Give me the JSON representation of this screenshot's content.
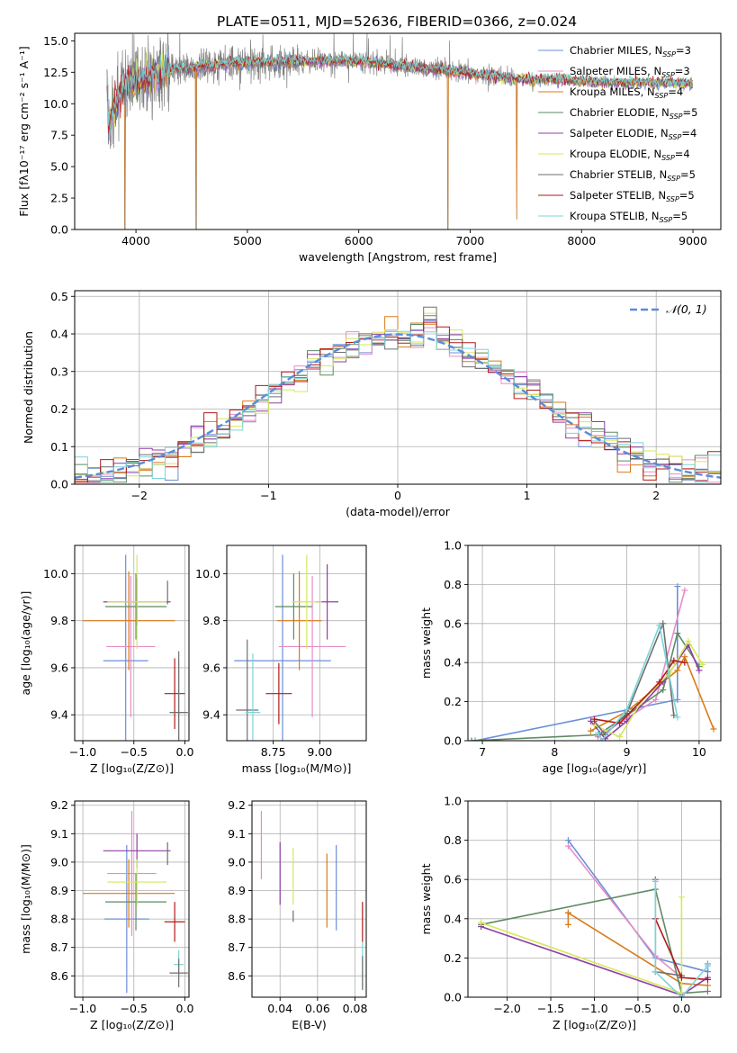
{
  "figure": {
    "title": "PLATE=0511, MJD=52636, FIBERID=0366, z=0.024"
  },
  "legend_entries": [
    {
      "name": "Chabrier MILES, N",
      "sub": "SSP",
      "tail": "=3",
      "color": "#6a8fd8"
    },
    {
      "name": "Salpeter MILES, N",
      "sub": "SSP",
      "tail": "=3",
      "color": "#e68cc7"
    },
    {
      "name": "Kroupa MILES, N",
      "sub": "SSP",
      "tail": "=4",
      "color": "#d97b1a"
    },
    {
      "name": "Chabrier ELODIE, N",
      "sub": "SSP",
      "tail": "=5",
      "color": "#5e8b62"
    },
    {
      "name": "Salpeter ELODIE, N",
      "sub": "SSP",
      "tail": "=4",
      "color": "#8f3fa6"
    },
    {
      "name": "Kroupa ELODIE, N",
      "sub": "SSP",
      "tail": "=4",
      "color": "#d5e85a"
    },
    {
      "name": "Chabrier STELIB, N",
      "sub": "SSP",
      "tail": "=5",
      "color": "#6f6f6f"
    },
    {
      "name": "Salpeter STELIB, N",
      "sub": "SSP",
      "tail": "=5",
      "color": "#b21a1a"
    },
    {
      "name": "Kroupa STELIB, N",
      "sub": "SSP",
      "tail": "=5",
      "color": "#7dd3d8"
    }
  ],
  "chart_data": [
    {
      "id": "spectrum",
      "type": "line",
      "xlabel": "wavelength [Angstrom, rest frame]",
      "ylabel": "Flux [fλ10⁻¹⁷ erg cm⁻² s⁻¹ A⁻¹]",
      "xlim": [
        3450,
        9250
      ],
      "ylim": [
        0,
        15.6
      ],
      "xticks": [
        4000,
        5000,
        6000,
        7000,
        8000,
        9000
      ],
      "yticks": [
        0.0,
        2.5,
        5.0,
        7.5,
        10.0,
        12.5,
        15.0
      ],
      "ytick_labels": [
        "0.0",
        "2.5",
        "5.0",
        "7.5",
        "10.0",
        "12.5",
        "15.0"
      ],
      "continuum": [
        [
          3750,
          8.5
        ],
        [
          3850,
          10.5
        ],
        [
          3950,
          11.8
        ],
        [
          4100,
          12.0
        ],
        [
          4300,
          12.7
        ],
        [
          4600,
          13.0
        ],
        [
          5000,
          13.3
        ],
        [
          5500,
          13.4
        ],
        [
          6000,
          13.4
        ],
        [
          6500,
          12.9
        ],
        [
          7000,
          12.4
        ],
        [
          7400,
          12.0
        ],
        [
          7800,
          11.9
        ],
        [
          8200,
          11.7
        ],
        [
          8600,
          11.7
        ],
        [
          9000,
          11.6
        ],
        [
          9200,
          11.4
        ]
      ],
      "data_range": [
        3740,
        7420
      ],
      "model_range": [
        3740,
        9000
      ],
      "dips": [
        [
          3900,
          0.0
        ],
        [
          4540,
          0.0
        ],
        [
          6800,
          0.0
        ],
        [
          7420,
          0.8
        ]
      ]
    },
    {
      "id": "residuals",
      "type": "histogram",
      "xlabel": "(data-model)/error",
      "ylabel": "Normed distribution",
      "xlim": [
        -2.5,
        2.5
      ],
      "ylim": [
        0,
        0.515
      ],
      "xticks": [
        -2,
        -1,
        0,
        1,
        2
      ],
      "xtick_labels": [
        "−2",
        "−1",
        "0",
        "1",
        "2"
      ],
      "yticks": [
        0.0,
        0.1,
        0.2,
        0.3,
        0.4,
        0.5
      ],
      "ytick_labels": [
        "0.0",
        "0.1",
        "0.2",
        "0.3",
        "0.4",
        "0.5"
      ],
      "bin_width": 0.1,
      "legend": "𝒩(0, 1)"
    },
    {
      "id": "age-vs-Z",
      "type": "errorbar",
      "xlabel": "Z [log₁₀(Z/Z⊙)]",
      "ylabel": "age  [log₁₀(age/yr)]",
      "xlim": [
        -1.08,
        0.04
      ],
      "ylim": [
        9.29,
        10.12
      ],
      "xticks": [
        -1.0,
        -0.5,
        0.0
      ],
      "xtick_labels": [
        "−1.0",
        "−0.5",
        "0.0"
      ],
      "yticks": [
        9.4,
        9.6,
        9.8,
        10.0
      ],
      "ytick_labels": [
        "9.4",
        "9.6",
        "9.8",
        "10.0"
      ],
      "points": [
        {
          "x": -0.58,
          "xerr": 0.22,
          "y": 9.63,
          "yerr": 0.45,
          "color": "#6a8fd8"
        },
        {
          "x": -0.53,
          "xerr": 0.24,
          "y": 9.69,
          "yerr": 0.3,
          "color": "#e68cc7"
        },
        {
          "x": -0.55,
          "xerr": 0.45,
          "y": 9.8,
          "yerr": 0.21,
          "color": "#d97b1a"
        },
        {
          "x": -0.48,
          "xerr": 0.3,
          "y": 9.86,
          "yerr": 0.14,
          "color": "#5e8b62"
        },
        {
          "x": -0.47,
          "xerr": 0.33,
          "y": 9.88,
          "yerr": 0.1,
          "color": "#8f3fa6"
        },
        {
          "x": -0.47,
          "xerr": 0.29,
          "y": 9.88,
          "yerr": 0.2,
          "color": "#d5e85a"
        },
        {
          "x": -0.17,
          "xerr": 0.0,
          "y": 9.92,
          "yerr": 0.05,
          "color": "#6f6f6f"
        },
        {
          "x": -0.1,
          "xerr": 0.1,
          "y": 9.49,
          "yerr": 0.15,
          "color": "#b21a1a"
        },
        {
          "x": -0.06,
          "xerr": 0.05,
          "y": 9.41,
          "yerr": 0.22,
          "color": "#7dd3d8"
        },
        {
          "x": -0.06,
          "xerr": 0.09,
          "y": 9.41,
          "yerr": 0.26,
          "color": "#6f6f6f"
        }
      ]
    },
    {
      "id": "age-vs-mass",
      "type": "errorbar",
      "xlabel": "mass [log₁₀(M/M⊙)]",
      "ylabel": "",
      "xlim": [
        8.5,
        9.25
      ],
      "ylim": [
        9.29,
        10.12
      ],
      "xticks": [
        8.75,
        9.0
      ],
      "xtick_labels": [
        "8.75",
        "9.00"
      ],
      "yticks": [
        9.4,
        9.6,
        9.8,
        10.0
      ],
      "ytick_labels": [
        "9.4",
        "9.6",
        "9.8",
        "10.0"
      ],
      "points": [
        {
          "x": 8.8,
          "xerr": 0.26,
          "y": 9.63,
          "yerr": 0.45,
          "color": "#6a8fd8"
        },
        {
          "x": 8.96,
          "xerr": 0.18,
          "y": 9.69,
          "yerr": 0.3,
          "color": "#e68cc7"
        },
        {
          "x": 8.89,
          "xerr": 0.12,
          "y": 9.8,
          "yerr": 0.21,
          "color": "#d97b1a"
        },
        {
          "x": 8.86,
          "xerr": 0.1,
          "y": 9.86,
          "yerr": 0.14,
          "color": "#5e8b62"
        },
        {
          "x": 9.04,
          "xerr": 0.06,
          "y": 9.88,
          "yerr": 0.16,
          "color": "#8f3fa6"
        },
        {
          "x": 8.93,
          "xerr": 0.08,
          "y": 9.88,
          "yerr": 0.2,
          "color": "#d5e85a"
        },
        {
          "x": 8.61,
          "xerr": 0.06,
          "y": 9.42,
          "yerr": 0.3,
          "color": "#6f6f6f"
        },
        {
          "x": 8.78,
          "xerr": 0.07,
          "y": 9.49,
          "yerr": 0.13,
          "color": "#b21a1a"
        },
        {
          "x": 8.64,
          "xerr": 0.04,
          "y": 9.41,
          "yerr": 0.25,
          "color": "#7dd3d8"
        }
      ]
    },
    {
      "id": "massweight-vs-age",
      "type": "line",
      "xlabel": "age  [log₁₀(age/yr)]",
      "ylabel": "mass weight",
      "xlim": [
        6.8,
        10.3
      ],
      "ylim": [
        0,
        1.0
      ],
      "xticks": [
        7,
        8,
        9,
        10
      ],
      "xtick_labels": [
        "7",
        "8",
        "9",
        "10"
      ],
      "yticks": [
        0.0,
        0.2,
        0.4,
        0.6,
        0.8,
        1.0
      ],
      "ytick_labels": [
        "0.0",
        "0.2",
        "0.4",
        "0.6",
        "0.8",
        "1.0"
      ],
      "series": [
        {
          "color": "#6a8fd8",
          "points": [
            [
              6.9,
              0.0
            ],
            [
              9.7,
              0.21
            ],
            [
              9.7,
              0.79
            ]
          ]
        },
        {
          "color": "#e68cc7",
          "points": [
            [
              8.6,
              0.02
            ],
            [
              9.4,
              0.21
            ],
            [
              9.8,
              0.77
            ]
          ]
        },
        {
          "color": "#d97b1a",
          "points": [
            [
              8.5,
              0.05
            ],
            [
              9.0,
              0.15
            ],
            [
              9.7,
              0.36
            ],
            [
              9.8,
              0.43
            ],
            [
              10.2,
              0.06
            ]
          ]
        },
        {
          "color": "#5e8b62",
          "points": [
            [
              6.85,
              0.0
            ],
            [
              8.6,
              0.03
            ],
            [
              9.0,
              0.13
            ],
            [
              9.5,
              0.26
            ],
            [
              9.7,
              0.55
            ],
            [
              10.0,
              0.38
            ]
          ]
        },
        {
          "color": "#8f3fa6",
          "points": [
            [
              8.5,
              0.1
            ],
            [
              8.7,
              0.01
            ],
            [
              9.0,
              0.1
            ],
            [
              9.5,
              0.3
            ],
            [
              9.85,
              0.49
            ],
            [
              10.0,
              0.36
            ]
          ]
        },
        {
          "color": "#d5e85a",
          "points": [
            [
              8.55,
              0.08
            ],
            [
              8.9,
              0.02
            ],
            [
              9.2,
              0.2
            ],
            [
              9.6,
              0.35
            ],
            [
              9.85,
              0.51
            ],
            [
              10.05,
              0.39
            ]
          ]
        },
        {
          "color": "#6f6f6f",
          "points": [
            [
              8.55,
              0.1
            ],
            [
              8.7,
              0.03
            ],
            [
              9.0,
              0.14
            ],
            [
              9.5,
              0.6
            ],
            [
              9.65,
              0.13
            ]
          ]
        },
        {
          "color": "#b21a1a",
          "points": [
            [
              8.55,
              0.11
            ],
            [
              8.9,
              0.09
            ],
            [
              9.45,
              0.3
            ],
            [
              9.65,
              0.41
            ],
            [
              9.8,
              0.4
            ]
          ]
        },
        {
          "color": "#7dd3d8",
          "points": [
            [
              8.6,
              0.04
            ],
            [
              8.65,
              0.0
            ],
            [
              9.0,
              0.16
            ],
            [
              9.45,
              0.59
            ],
            [
              9.7,
              0.12
            ]
          ]
        }
      ]
    },
    {
      "id": "mass-vs-Z",
      "type": "errorbar",
      "xlabel": "Z [log₁₀(Z/Z⊙)]",
      "ylabel": "mass [log₁₀(M/M⊙)]",
      "xlim": [
        -1.08,
        0.04
      ],
      "ylim": [
        8.525,
        9.215
      ],
      "xticks": [
        -1.0,
        -0.5,
        0.0
      ],
      "xtick_labels": [
        "−1.0",
        "−0.5",
        "0.0"
      ],
      "yticks": [
        8.6,
        8.7,
        8.8,
        8.9,
        9.0,
        9.1,
        9.2
      ],
      "ytick_labels": [
        "8.6",
        "8.7",
        "8.8",
        "8.9",
        "9.0",
        "9.1",
        "9.2"
      ],
      "points": [
        {
          "x": -0.57,
          "xerr": 0.22,
          "y": 8.8,
          "yerr": 0.26,
          "color": "#6a8fd8"
        },
        {
          "x": -0.52,
          "xerr": 0.24,
          "y": 8.96,
          "yerr": 0.22,
          "color": "#e68cc7"
        },
        {
          "x": -0.55,
          "xerr": 0.45,
          "y": 8.89,
          "yerr": 0.12,
          "color": "#d97b1a"
        },
        {
          "x": -0.48,
          "xerr": 0.3,
          "y": 8.86,
          "yerr": 0.1,
          "color": "#5e8b62"
        },
        {
          "x": -0.47,
          "xerr": 0.33,
          "y": 9.04,
          "yerr": 0.06,
          "color": "#8f3fa6"
        },
        {
          "x": -0.47,
          "xerr": 0.29,
          "y": 8.93,
          "yerr": 0.08,
          "color": "#d5e85a"
        },
        {
          "x": -0.17,
          "xerr": 0.0,
          "y": 9.03,
          "yerr": 0.04,
          "color": "#6f6f6f"
        },
        {
          "x": -0.1,
          "xerr": 0.1,
          "y": 8.79,
          "yerr": 0.07,
          "color": "#b21a1a"
        },
        {
          "x": -0.06,
          "xerr": 0.05,
          "y": 8.64,
          "yerr": 0.05,
          "color": "#7dd3d8"
        },
        {
          "x": -0.06,
          "xerr": 0.09,
          "y": 8.61,
          "yerr": 0.05,
          "color": "#6f6f6f"
        }
      ]
    },
    {
      "id": "mass-vs-EBV",
      "type": "errorbar",
      "xlabel": "E(B-V)",
      "ylabel": "",
      "xlim": [
        0.025,
        0.086
      ],
      "ylim": [
        8.525,
        9.215
      ],
      "xticks": [
        0.04,
        0.06,
        0.08
      ],
      "xtick_labels": [
        "0.04",
        "0.06",
        "0.08"
      ],
      "yticks": [
        8.6,
        8.7,
        8.8,
        8.9,
        9.0,
        9.1,
        9.2
      ],
      "ytick_labels": [
        "8.6",
        "8.7",
        "8.8",
        "8.9",
        "9.0",
        "9.1",
        "9.2"
      ],
      "points": [
        {
          "x": 0.03,
          "xerr": 0.0,
          "y": 9.06,
          "yerr": 0.12,
          "color": "#e68cc7"
        },
        {
          "x": 0.04,
          "xerr": 0.0,
          "y": 8.96,
          "yerr": 0.11,
          "color": "#8f3fa6"
        },
        {
          "x": 0.047,
          "xerr": 0.0,
          "y": 8.95,
          "yerr": 0.1,
          "color": "#d5e85a"
        },
        {
          "x": 0.047,
          "xerr": 0.0,
          "y": 8.81,
          "yerr": 0.02,
          "color": "#6f6f6f"
        },
        {
          "x": 0.065,
          "xerr": 0.0,
          "y": 8.9,
          "yerr": 0.13,
          "color": "#d97b1a"
        },
        {
          "x": 0.07,
          "xerr": 0.0,
          "y": 8.91,
          "yerr": 0.15,
          "color": "#6a8fd8"
        },
        {
          "x": 0.084,
          "xerr": 0.0,
          "y": 8.79,
          "yerr": 0.07,
          "color": "#b21a1a"
        },
        {
          "x": 0.084,
          "xerr": 0.0,
          "y": 8.64,
          "yerr": 0.08,
          "color": "#7dd3d8"
        },
        {
          "x": 0.084,
          "xerr": 0.0,
          "y": 8.61,
          "yerr": 0.06,
          "color": "#6f6f6f"
        }
      ]
    },
    {
      "id": "massweight-vs-Z",
      "type": "line",
      "xlabel": "Z [log₁₀(Z/Z⊙)]",
      "ylabel": "mass weight",
      "xlim": [
        -2.45,
        0.45
      ],
      "ylim": [
        0,
        1.0
      ],
      "xticks": [
        -2.0,
        -1.5,
        -1.0,
        -0.5,
        0.0
      ],
      "xtick_labels": [
        "−2.0",
        "−1.5",
        "−1.0",
        "−0.5",
        "0.0"
      ],
      "yticks": [
        0.0,
        0.2,
        0.4,
        0.6,
        0.8,
        1.0
      ],
      "ytick_labels": [
        "0.0",
        "0.2",
        "0.4",
        "0.6",
        "0.8",
        "1.0"
      ],
      "series": [
        {
          "color": "#6a8fd8",
          "points": [
            [
              -1.3,
              0.8
            ],
            [
              -0.3,
              0.2
            ],
            [
              0.3,
              0.13
            ],
            [
              0.3,
              0.17
            ]
          ]
        },
        {
          "color": "#e68cc7",
          "points": [
            [
              -1.3,
              0.77
            ],
            [
              -0.3,
              0.21
            ],
            [
              0.0,
              0.1
            ]
          ]
        },
        {
          "color": "#d97b1a",
          "points": [
            [
              -1.3,
              0.43
            ],
            [
              -1.3,
              0.37
            ],
            [
              -1.3,
              0.43
            ],
            [
              0.0,
              0.07
            ],
            [
              0.3,
              0.06
            ]
          ]
        },
        {
          "color": "#5e8b62",
          "points": [
            [
              -2.3,
              0.37
            ],
            [
              -0.3,
              0.55
            ],
            [
              0.0,
              0.02
            ],
            [
              0.3,
              0.03
            ]
          ]
        },
        {
          "color": "#8f3fa6",
          "points": [
            [
              -2.3,
              0.36
            ],
            [
              0.0,
              0.01
            ],
            [
              0.3,
              0.1
            ]
          ]
        },
        {
          "color": "#d5e85a",
          "points": [
            [
              -2.3,
              0.38
            ],
            [
              0.0,
              0.02
            ],
            [
              0.0,
              0.51
            ],
            [
              0.0,
              0.02
            ]
          ]
        },
        {
          "color": "#6f6f6f",
          "points": [
            [
              -0.3,
              0.13
            ],
            [
              -0.3,
              0.6
            ],
            [
              -0.3,
              0.13
            ],
            [
              0.0,
              0.11
            ]
          ]
        },
        {
          "color": "#b21a1a",
          "points": [
            [
              -0.3,
              0.4
            ],
            [
              0.0,
              0.1
            ],
            [
              0.3,
              0.09
            ]
          ]
        },
        {
          "color": "#7dd3d8",
          "points": [
            [
              -0.3,
              0.59
            ],
            [
              -0.3,
              0.13
            ],
            [
              0.0,
              0.0
            ],
            [
              0.3,
              0.16
            ]
          ]
        }
      ]
    }
  ]
}
